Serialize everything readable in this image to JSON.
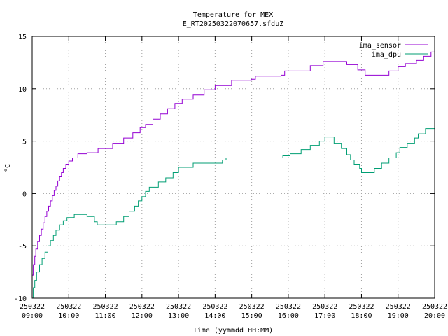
{
  "chart_data": {
    "type": "line",
    "title": "Temperature for MEX",
    "subtitle": "E_RT20250322070657.sfduZ",
    "xlabel": "Time (yymmdd HH:MM)",
    "ylabel": "°C",
    "xlim": [
      9.0,
      20.0
    ],
    "ylim": [
      -10,
      15
    ],
    "grid": true,
    "legend_position": "top-right",
    "x_ticks": [
      {
        "value": 9,
        "date": "250322",
        "time": "09:00"
      },
      {
        "value": 10,
        "date": "250322",
        "time": "10:00"
      },
      {
        "value": 11,
        "date": "250322",
        "time": "11:00"
      },
      {
        "value": 12,
        "date": "250322",
        "time": "12:00"
      },
      {
        "value": 13,
        "date": "250322",
        "time": "13:00"
      },
      {
        "value": 14,
        "date": "250322",
        "time": "14:00"
      },
      {
        "value": 15,
        "date": "250322",
        "time": "15:00"
      },
      {
        "value": 16,
        "date": "250322",
        "time": "16:00"
      },
      {
        "value": 17,
        "date": "250322",
        "time": "17:00"
      },
      {
        "value": 18,
        "date": "250322",
        "time": "18:00"
      },
      {
        "value": 19,
        "date": "250322",
        "time": "19:00"
      },
      {
        "value": 20,
        "date": "250322",
        "time": "20:00"
      }
    ],
    "y_ticks": [
      {
        "value": 15,
        "label": "15"
      },
      {
        "value": 10,
        "label": "10"
      },
      {
        "value": 5,
        "label": "5"
      },
      {
        "value": 0,
        "label": "0"
      },
      {
        "value": -5,
        "label": "-5"
      },
      {
        "value": -10,
        "label": "-10"
      }
    ],
    "series": [
      {
        "name": "ima_sensor",
        "color": "#9400d3",
        "style": "step",
        "points": [
          [
            9.0,
            -7.8
          ],
          [
            9.03,
            -6.8
          ],
          [
            9.07,
            -6.0
          ],
          [
            9.1,
            -5.3
          ],
          [
            9.15,
            -4.6
          ],
          [
            9.2,
            -4.0
          ],
          [
            9.25,
            -3.4
          ],
          [
            9.3,
            -2.8
          ],
          [
            9.35,
            -2.2
          ],
          [
            9.4,
            -1.7
          ],
          [
            9.45,
            -1.2
          ],
          [
            9.5,
            -0.7
          ],
          [
            9.55,
            -0.2
          ],
          [
            9.6,
            0.3
          ],
          [
            9.65,
            0.7
          ],
          [
            9.7,
            1.2
          ],
          [
            9.75,
            1.6
          ],
          [
            9.8,
            2.0
          ],
          [
            9.85,
            2.4
          ],
          [
            9.92,
            2.8
          ],
          [
            10.0,
            3.1
          ],
          [
            10.1,
            3.4
          ],
          [
            10.25,
            3.8
          ],
          [
            10.5,
            3.9
          ],
          [
            10.8,
            4.3
          ],
          [
            11.2,
            4.8
          ],
          [
            11.5,
            5.3
          ],
          [
            11.75,
            5.8
          ],
          [
            11.95,
            6.3
          ],
          [
            12.1,
            6.6
          ],
          [
            12.3,
            7.1
          ],
          [
            12.5,
            7.6
          ],
          [
            12.7,
            8.1
          ],
          [
            12.9,
            8.6
          ],
          [
            13.1,
            9.0
          ],
          [
            13.4,
            9.4
          ],
          [
            13.7,
            9.9
          ],
          [
            14.0,
            10.3
          ],
          [
            14.45,
            10.8
          ],
          [
            15.0,
            10.9
          ],
          [
            15.1,
            11.2
          ],
          [
            15.8,
            11.3
          ],
          [
            15.9,
            11.7
          ],
          [
            16.6,
            12.2
          ],
          [
            16.95,
            12.6
          ],
          [
            17.6,
            12.3
          ],
          [
            17.9,
            11.8
          ],
          [
            18.1,
            11.3
          ],
          [
            18.75,
            11.7
          ],
          [
            19.0,
            12.1
          ],
          [
            19.2,
            12.4
          ],
          [
            19.5,
            12.7
          ],
          [
            19.7,
            13.1
          ],
          [
            19.9,
            13.5
          ],
          [
            20.0,
            13.4
          ]
        ]
      },
      {
        "name": "ima_dpu",
        "color": "#009e73",
        "style": "step",
        "points": [
          [
            9.0,
            -10.0
          ],
          [
            9.03,
            -9.0
          ],
          [
            9.07,
            -8.3
          ],
          [
            9.12,
            -7.5
          ],
          [
            9.2,
            -6.8
          ],
          [
            9.27,
            -6.2
          ],
          [
            9.35,
            -5.6
          ],
          [
            9.43,
            -5.0
          ],
          [
            9.5,
            -4.5
          ],
          [
            9.58,
            -4.0
          ],
          [
            9.65,
            -3.5
          ],
          [
            9.75,
            -3.0
          ],
          [
            9.85,
            -2.6
          ],
          [
            9.95,
            -2.3
          ],
          [
            10.15,
            -2.0
          ],
          [
            10.5,
            -2.2
          ],
          [
            10.7,
            -2.7
          ],
          [
            10.78,
            -3.0
          ],
          [
            11.3,
            -2.7
          ],
          [
            11.5,
            -2.2
          ],
          [
            11.65,
            -1.7
          ],
          [
            11.8,
            -1.2
          ],
          [
            11.9,
            -0.7
          ],
          [
            12.0,
            -0.3
          ],
          [
            12.1,
            0.2
          ],
          [
            12.2,
            0.6
          ],
          [
            12.45,
            1.1
          ],
          [
            12.65,
            1.5
          ],
          [
            12.85,
            2.0
          ],
          [
            13.0,
            2.5
          ],
          [
            13.4,
            2.9
          ],
          [
            14.2,
            3.2
          ],
          [
            14.3,
            3.4
          ],
          [
            15.85,
            3.6
          ],
          [
            16.05,
            3.8
          ],
          [
            16.35,
            4.2
          ],
          [
            16.6,
            4.6
          ],
          [
            16.85,
            5.0
          ],
          [
            17.0,
            5.4
          ],
          [
            17.25,
            4.8
          ],
          [
            17.45,
            4.3
          ],
          [
            17.6,
            3.7
          ],
          [
            17.7,
            3.2
          ],
          [
            17.8,
            2.8
          ],
          [
            17.95,
            2.4
          ],
          [
            18.0,
            2.0
          ],
          [
            18.35,
            2.4
          ],
          [
            18.55,
            2.9
          ],
          [
            18.75,
            3.4
          ],
          [
            18.95,
            3.9
          ],
          [
            19.05,
            4.4
          ],
          [
            19.25,
            4.8
          ],
          [
            19.45,
            5.3
          ],
          [
            19.55,
            5.7
          ],
          [
            19.75,
            6.2
          ],
          [
            20.0,
            6.5
          ]
        ]
      }
    ]
  }
}
